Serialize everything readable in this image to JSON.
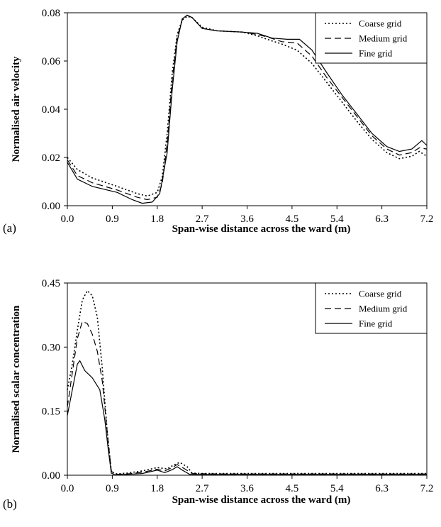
{
  "chart_data": [
    {
      "type": "line",
      "panel_label": "(a)",
      "xlabel": "Span-wise distance across the ward (m)",
      "ylabel": "Normalised air velocity",
      "xlim": [
        0,
        7.2
      ],
      "ylim": [
        0,
        0.08
      ],
      "xticks": [
        "0.0",
        "0.9",
        "1.8",
        "2.7",
        "3.6",
        "4.5",
        "5.4",
        "6.3",
        "7.2"
      ],
      "yticks": [
        "0.00",
        "0.02",
        "0.04",
        "0.06",
        "0.08"
      ],
      "legend_position": "top-right",
      "grid": false,
      "series": [
        {
          "name": "Coarse grid",
          "dash": "dotted",
          "points": [
            [
              0.0,
              0.02
            ],
            [
              0.2,
              0.015
            ],
            [
              0.5,
              0.0115
            ],
            [
              1.0,
              0.008
            ],
            [
              1.4,
              0.005
            ],
            [
              1.6,
              0.004
            ],
            [
              1.8,
              0.0055
            ],
            [
              1.9,
              0.012
            ],
            [
              2.0,
              0.03
            ],
            [
              2.1,
              0.055
            ],
            [
              2.2,
              0.071
            ],
            [
              2.3,
              0.077
            ],
            [
              2.4,
              0.0785
            ],
            [
              2.5,
              0.078
            ],
            [
              2.7,
              0.074
            ],
            [
              3.0,
              0.0725
            ],
            [
              3.5,
              0.072
            ],
            [
              3.8,
              0.0705
            ],
            [
              4.0,
              0.069
            ],
            [
              4.3,
              0.067
            ],
            [
              4.6,
              0.0645
            ],
            [
              4.9,
              0.059
            ],
            [
              5.2,
              0.051
            ],
            [
              5.5,
              0.043
            ],
            [
              5.8,
              0.035
            ],
            [
              6.1,
              0.0275
            ],
            [
              6.4,
              0.022
            ],
            [
              6.65,
              0.0195
            ],
            [
              6.9,
              0.0205
            ],
            [
              7.05,
              0.0225
            ],
            [
              7.2,
              0.0205
            ]
          ]
        },
        {
          "name": "Medium grid",
          "dash": "dashed",
          "points": [
            [
              0.0,
              0.019
            ],
            [
              0.2,
              0.0125
            ],
            [
              0.5,
              0.0095
            ],
            [
              1.0,
              0.0065
            ],
            [
              1.4,
              0.0035
            ],
            [
              1.6,
              0.0025
            ],
            [
              1.8,
              0.0035
            ],
            [
              1.9,
              0.009
            ],
            [
              2.0,
              0.026
            ],
            [
              2.1,
              0.052
            ],
            [
              2.2,
              0.07
            ],
            [
              2.3,
              0.077
            ],
            [
              2.4,
              0.079
            ],
            [
              2.5,
              0.078
            ],
            [
              2.7,
              0.0735
            ],
            [
              3.0,
              0.0725
            ],
            [
              3.5,
              0.072
            ],
            [
              3.8,
              0.071
            ],
            [
              4.0,
              0.07
            ],
            [
              4.3,
              0.068
            ],
            [
              4.6,
              0.0675
            ],
            [
              4.9,
              0.062
            ],
            [
              5.2,
              0.053
            ],
            [
              5.5,
              0.045
            ],
            [
              5.8,
              0.037
            ],
            [
              6.1,
              0.029
            ],
            [
              6.4,
              0.0235
            ],
            [
              6.65,
              0.021
            ],
            [
              6.9,
              0.022
            ],
            [
              7.05,
              0.024
            ],
            [
              7.2,
              0.0235
            ]
          ]
        },
        {
          "name": "Fine grid",
          "dash": "solid",
          "points": [
            [
              0.0,
              0.018
            ],
            [
              0.2,
              0.011
            ],
            [
              0.5,
              0.008
            ],
            [
              1.0,
              0.0055
            ],
            [
              1.3,
              0.0025
            ],
            [
              1.5,
              0.001
            ],
            [
              1.7,
              0.0015
            ],
            [
              1.85,
              0.005
            ],
            [
              2.0,
              0.022
            ],
            [
              2.1,
              0.048
            ],
            [
              2.2,
              0.068
            ],
            [
              2.3,
              0.0775
            ],
            [
              2.4,
              0.079
            ],
            [
              2.5,
              0.078
            ],
            [
              2.7,
              0.0735
            ],
            [
              3.0,
              0.0725
            ],
            [
              3.5,
              0.072
            ],
            [
              3.8,
              0.0715
            ],
            [
              4.1,
              0.0695
            ],
            [
              4.4,
              0.069
            ],
            [
              4.65,
              0.069
            ],
            [
              4.9,
              0.0645
            ],
            [
              5.2,
              0.055
            ],
            [
              5.5,
              0.046
            ],
            [
              5.8,
              0.038
            ],
            [
              6.1,
              0.03
            ],
            [
              6.4,
              0.0245
            ],
            [
              6.65,
              0.0225
            ],
            [
              6.9,
              0.0235
            ],
            [
              7.1,
              0.027
            ],
            [
              7.2,
              0.025
            ]
          ]
        }
      ]
    },
    {
      "type": "line",
      "panel_label": "(b)",
      "xlabel": "Span-wise distance across the ward (m)",
      "ylabel": "Normalised scalar concentration",
      "xlim": [
        0,
        7.2
      ],
      "ylim": [
        0,
        0.45
      ],
      "xticks": [
        "0.0",
        "0.9",
        "1.8",
        "2.7",
        "3.6",
        "4.5",
        "5.4",
        "6.3",
        "7.2"
      ],
      "yticks": [
        "0.00",
        "0.15",
        "0.30",
        "0.45"
      ],
      "legend_position": "top-right",
      "grid": false,
      "series": [
        {
          "name": "Coarse grid",
          "dash": "dotted",
          "points": [
            [
              0.0,
              0.2
            ],
            [
              0.1,
              0.26
            ],
            [
              0.2,
              0.34
            ],
            [
              0.3,
              0.41
            ],
            [
              0.4,
              0.432
            ],
            [
              0.5,
              0.42
            ],
            [
              0.6,
              0.37
            ],
            [
              0.7,
              0.25
            ],
            [
              0.8,
              0.1
            ],
            [
              0.88,
              0.01
            ],
            [
              0.95,
              0.003
            ],
            [
              1.2,
              0.005
            ],
            [
              1.5,
              0.01
            ],
            [
              1.8,
              0.018
            ],
            [
              2.0,
              0.015
            ],
            [
              2.1,
              0.022
            ],
            [
              2.25,
              0.03
            ],
            [
              2.4,
              0.02
            ],
            [
              2.5,
              0.005
            ],
            [
              2.7,
              0.004
            ],
            [
              3.6,
              0.004
            ],
            [
              7.2,
              0.004
            ]
          ]
        },
        {
          "name": "Medium grid",
          "dash": "dashed",
          "points": [
            [
              0.0,
              0.16
            ],
            [
              0.1,
              0.24
            ],
            [
              0.2,
              0.32
            ],
            [
              0.3,
              0.36
            ],
            [
              0.4,
              0.355
            ],
            [
              0.5,
              0.33
            ],
            [
              0.6,
              0.29
            ],
            [
              0.7,
              0.22
            ],
            [
              0.8,
              0.1
            ],
            [
              0.88,
              0.01
            ],
            [
              0.95,
              0.002
            ],
            [
              1.2,
              0.003
            ],
            [
              1.5,
              0.007
            ],
            [
              1.8,
              0.014
            ],
            [
              1.95,
              0.01
            ],
            [
              2.1,
              0.018
            ],
            [
              2.2,
              0.025
            ],
            [
              2.35,
              0.015
            ],
            [
              2.5,
              0.004
            ],
            [
              3.0,
              0.003
            ],
            [
              7.2,
              0.003
            ]
          ]
        },
        {
          "name": "Fine grid",
          "dash": "solid",
          "points": [
            [
              0.0,
              0.14
            ],
            [
              0.1,
              0.2
            ],
            [
              0.2,
              0.26
            ],
            [
              0.25,
              0.268
            ],
            [
              0.35,
              0.245
            ],
            [
              0.5,
              0.228
            ],
            [
              0.65,
              0.2
            ],
            [
              0.75,
              0.13
            ],
            [
              0.82,
              0.06
            ],
            [
              0.88,
              0.005
            ],
            [
              0.95,
              0.001
            ],
            [
              1.2,
              0.002
            ],
            [
              1.5,
              0.004
            ],
            [
              1.8,
              0.012
            ],
            [
              1.95,
              0.006
            ],
            [
              2.1,
              0.013
            ],
            [
              2.2,
              0.02
            ],
            [
              2.3,
              0.012
            ],
            [
              2.45,
              0.002
            ],
            [
              3.0,
              0.002
            ],
            [
              7.2,
              0.002
            ]
          ]
        }
      ]
    }
  ]
}
